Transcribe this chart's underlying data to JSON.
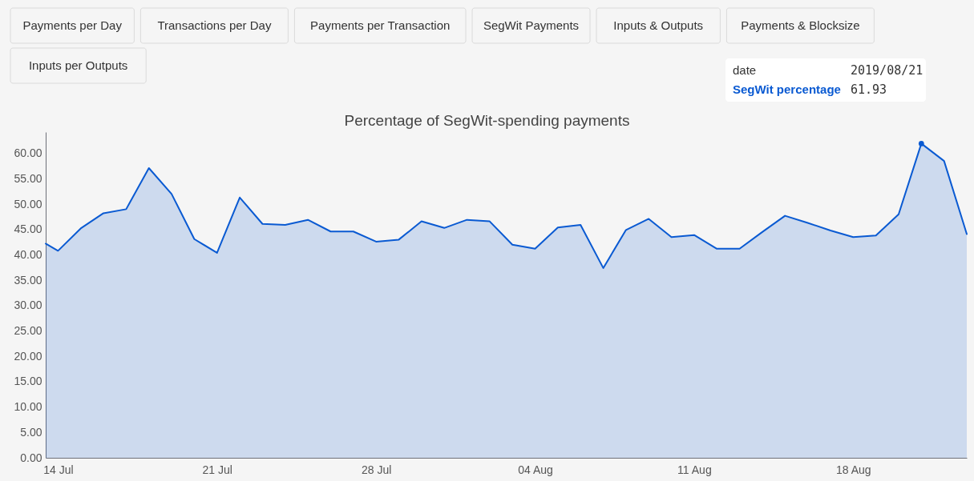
{
  "chart_data": {
    "type": "area",
    "title": "Percentage of SegWit-spending payments",
    "x": [
      "2019-07-13T11:00",
      "2019-07-14",
      "2019-07-15",
      "2019-07-16",
      "2019-07-17",
      "2019-07-18",
      "2019-07-19",
      "2019-07-20",
      "2019-07-21",
      "2019-07-22",
      "2019-07-23",
      "2019-07-24",
      "2019-07-25",
      "2019-07-26",
      "2019-07-27",
      "2019-07-28",
      "2019-07-29",
      "2019-07-30",
      "2019-07-31",
      "2019-08-01",
      "2019-08-02",
      "2019-08-03",
      "2019-08-04",
      "2019-08-05",
      "2019-08-06",
      "2019-08-07",
      "2019-08-08",
      "2019-08-09",
      "2019-08-10",
      "2019-08-11",
      "2019-08-12",
      "2019-08-13",
      "2019-08-14",
      "2019-08-15",
      "2019-08-16",
      "2019-08-17",
      "2019-08-18",
      "2019-08-19",
      "2019-08-20",
      "2019-08-21",
      "2019-08-22",
      "2019-08-23"
    ],
    "series": [
      {
        "color": "#0a5ad2",
        "values": [
          42.2,
          40.8,
          45.2,
          48.2,
          49.0,
          57.1,
          52.0,
          43.1,
          40.4,
          51.3,
          46.1,
          45.9,
          46.9,
          44.6,
          44.6,
          42.6,
          43.0,
          46.6,
          45.3,
          46.9,
          46.6,
          42.0,
          41.2,
          45.4,
          45.9,
          37.4,
          44.9,
          47.1,
          43.5,
          43.9,
          41.2,
          41.2,
          44.5,
          47.7,
          46.3,
          44.8,
          43.5,
          43.8,
          48.0,
          61.93,
          58.5,
          44.1
        ]
      },
      {
        "type": "scatter",
        "color": "#0a5ad2",
        "x": [
          "2019-08-21"
        ],
        "values": [
          61.93
        ]
      }
    ],
    "xlim": [
      "2019-07-13T11:00",
      "2019-08-23"
    ],
    "xticks": [
      {
        "value": "2019-07-14",
        "label": "14 Jul"
      },
      {
        "value": "2019-07-21",
        "label": "21 Jul"
      },
      {
        "value": "2019-07-28",
        "label": "28 Jul"
      },
      {
        "value": "2019-08-04",
        "label": "04 Aug"
      },
      {
        "value": "2019-08-11",
        "label": "11 Aug"
      },
      {
        "value": "2019-08-18",
        "label": "18 Aug"
      }
    ],
    "ylim": [
      0,
      64.2
    ],
    "yticks": [
      {
        "value": 0,
        "label": "0.00"
      },
      {
        "value": 5,
        "label": "5.00"
      },
      {
        "value": 10,
        "label": "10.00"
      },
      {
        "value": 15,
        "label": "15.00"
      },
      {
        "value": 20,
        "label": "20.00"
      },
      {
        "value": 25,
        "label": "25.00"
      },
      {
        "value": 30,
        "label": "30.00"
      },
      {
        "value": 35,
        "label": "35.00"
      },
      {
        "value": 40,
        "label": "40.00"
      },
      {
        "value": 45,
        "label": "45.00"
      },
      {
        "value": 50,
        "label": "50.00"
      },
      {
        "value": 55,
        "label": "55.00"
      },
      {
        "value": 60,
        "label": "60.00"
      }
    ],
    "grid": false,
    "line_style": "solid",
    "annotations": [
      "Payments per Day",
      "Transactions per Day",
      "Payments per Transaction",
      "SegWit Payments",
      "Inputs & Outputs",
      "Payments & Blocksize",
      "Inputs per Outputs",
      "date",
      "2019/08/21",
      "SegWit percentage",
      "61.93"
    ]
  }
}
